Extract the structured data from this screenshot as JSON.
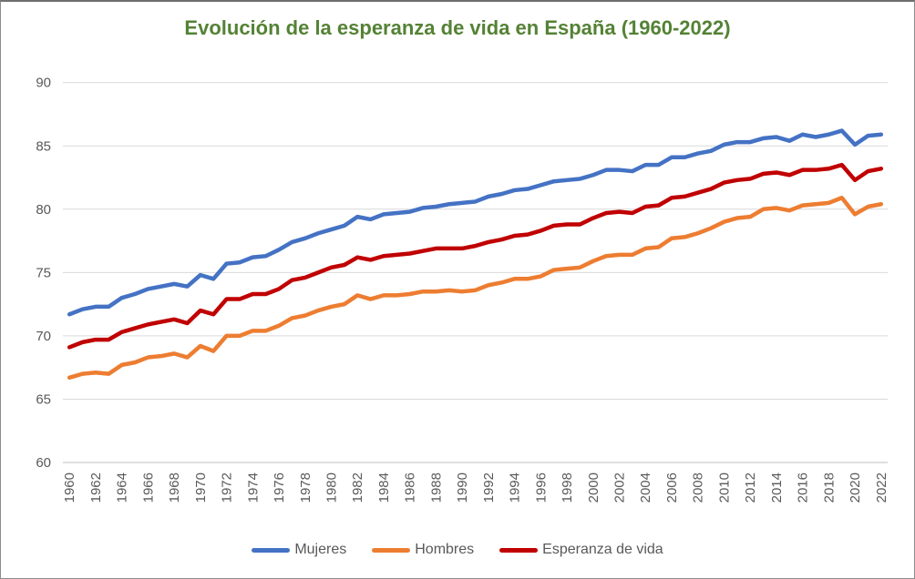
{
  "window": {
    "background": "#ffffff",
    "border_color": "#8c8c8c"
  },
  "chart_data": {
    "type": "line",
    "title": "Evolución de la esperanza de vida en España (1960-2022)",
    "title_color": "#548235",
    "x": [
      1960,
      1961,
      1962,
      1963,
      1964,
      1965,
      1966,
      1967,
      1968,
      1969,
      1970,
      1971,
      1972,
      1973,
      1974,
      1975,
      1976,
      1977,
      1978,
      1979,
      1980,
      1981,
      1982,
      1983,
      1984,
      1985,
      1986,
      1987,
      1988,
      1989,
      1990,
      1991,
      1992,
      1993,
      1994,
      1995,
      1996,
      1997,
      1998,
      1999,
      2000,
      2001,
      2002,
      2003,
      2004,
      2005,
      2006,
      2007,
      2008,
      2009,
      2010,
      2011,
      2012,
      2013,
      2014,
      2015,
      2016,
      2017,
      2018,
      2019,
      2020,
      2021,
      2022
    ],
    "series": [
      {
        "name": "Mujeres",
        "color": "#4472C4",
        "values": [
          71.7,
          72.1,
          72.3,
          72.3,
          73.0,
          73.3,
          73.7,
          73.9,
          74.1,
          73.9,
          74.8,
          74.5,
          75.7,
          75.8,
          76.2,
          76.3,
          76.8,
          77.4,
          77.7,
          78.1,
          78.4,
          78.7,
          79.4,
          79.2,
          79.6,
          79.7,
          79.8,
          80.1,
          80.2,
          80.4,
          80.5,
          80.6,
          81.0,
          81.2,
          81.5,
          81.6,
          81.9,
          82.2,
          82.3,
          82.4,
          82.7,
          83.1,
          83.1,
          83.0,
          83.5,
          83.5,
          84.1,
          84.1,
          84.4,
          84.6,
          85.1,
          85.3,
          85.3,
          85.6,
          85.7,
          85.4,
          85.9,
          85.7,
          85.9,
          86.2,
          85.1,
          85.8,
          85.9
        ]
      },
      {
        "name": "Hombres",
        "color": "#ED7D31",
        "values": [
          66.7,
          67.0,
          67.1,
          67.0,
          67.7,
          67.9,
          68.3,
          68.4,
          68.6,
          68.3,
          69.2,
          68.8,
          70.0,
          70.0,
          70.4,
          70.4,
          70.8,
          71.4,
          71.6,
          72.0,
          72.3,
          72.5,
          73.2,
          72.9,
          73.2,
          73.2,
          73.3,
          73.5,
          73.5,
          73.6,
          73.5,
          73.6,
          74.0,
          74.2,
          74.5,
          74.5,
          74.7,
          75.2,
          75.3,
          75.4,
          75.9,
          76.3,
          76.4,
          76.4,
          76.9,
          77.0,
          77.7,
          77.8,
          78.1,
          78.5,
          79.0,
          79.3,
          79.4,
          80.0,
          80.1,
          79.9,
          80.3,
          80.4,
          80.5,
          80.9,
          79.6,
          80.2,
          80.4
        ]
      },
      {
        "name": "Esperanza de vida",
        "color": "#C00000",
        "values": [
          69.1,
          69.5,
          69.7,
          69.7,
          70.3,
          70.6,
          70.9,
          71.1,
          71.3,
          71.0,
          72.0,
          71.7,
          72.9,
          72.9,
          73.3,
          73.3,
          73.7,
          74.4,
          74.6,
          75.0,
          75.4,
          75.6,
          76.2,
          76.0,
          76.3,
          76.4,
          76.5,
          76.7,
          76.9,
          76.9,
          76.9,
          77.1,
          77.4,
          77.6,
          77.9,
          78.0,
          78.3,
          78.7,
          78.8,
          78.8,
          79.3,
          79.7,
          79.8,
          79.7,
          80.2,
          80.3,
          80.9,
          81.0,
          81.3,
          81.6,
          82.1,
          82.3,
          82.4,
          82.8,
          82.9,
          82.7,
          83.1,
          83.1,
          83.2,
          83.5,
          82.3,
          83.0,
          83.2
        ]
      }
    ],
    "ylim": [
      60,
      90
    ],
    "yticks": [
      60,
      65,
      70,
      75,
      80,
      85,
      90
    ],
    "xtick_step": 2,
    "x_label_rotation": -90,
    "grid": "horizontal",
    "gridline_color": "#D9D9D9",
    "axis_line_color": "#BFBFBF",
    "tick_label_color": "#595959",
    "legend_position": "bottom",
    "legend_text_color": "#595959"
  }
}
